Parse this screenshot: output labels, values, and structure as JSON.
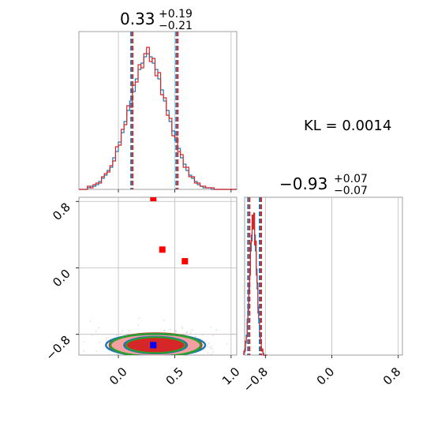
{
  "chart_data": {
    "type": "corner",
    "panels": [
      {
        "panel": "histogram-param1",
        "type": "histogram",
        "title_main": "0.33",
        "title_sup": "+0.19",
        "title_sub": "−0.21",
        "xlim": [
          -0.35,
          1.05
        ],
        "x_ticks": [
          0.0,
          0.5,
          1.0
        ],
        "quantile_lines": [
          0.12,
          0.33,
          0.52
        ],
        "bins": [
          -0.35,
          -0.325,
          -0.3,
          -0.275,
          -0.25,
          -0.225,
          -0.2,
          -0.175,
          -0.15,
          -0.125,
          -0.1,
          -0.075,
          -0.05,
          -0.025,
          0.0,
          0.025,
          0.05,
          0.075,
          0.1,
          0.125,
          0.15,
          0.175,
          0.2,
          0.225,
          0.25,
          0.275,
          0.3,
          0.325,
          0.35,
          0.375,
          0.4,
          0.425,
          0.45,
          0.475,
          0.5,
          0.525,
          0.55,
          0.575,
          0.6,
          0.625,
          0.65,
          0.675,
          0.7,
          0.725,
          0.75,
          0.775,
          0.8,
          0.825,
          0.85,
          0.875,
          0.9,
          0.925,
          0.95,
          0.975,
          1.0,
          1.025,
          1.05
        ],
        "series": [
          {
            "name": "blue",
            "color": "#1f77b4",
            "counts": [
              0,
              0,
              0,
              0.01,
              0.02,
              0.02,
              0.03,
              0.05,
              0.07,
              0.09,
              0.12,
              0.14,
              0.2,
              0.24,
              0.3,
              0.36,
              0.43,
              0.5,
              0.56,
              0.62,
              0.7,
              0.76,
              0.8,
              0.84,
              0.86,
              0.84,
              0.8,
              0.76,
              0.7,
              0.63,
              0.56,
              0.5,
              0.43,
              0.37,
              0.31,
              0.26,
              0.2,
              0.16,
              0.12,
              0.09,
              0.07,
              0.05,
              0.03,
              0.02,
              0.01,
              0.01,
              0.01,
              0.0,
              0.0,
              0.0,
              0.0,
              0.0,
              0.0,
              0.0,
              0.0,
              0.0
            ]
          },
          {
            "name": "red",
            "color": "#d62728",
            "counts": [
              0,
              0,
              0,
              0.02,
              0.01,
              0.03,
              0.04,
              0.04,
              0.08,
              0.1,
              0.11,
              0.15,
              0.18,
              0.27,
              0.28,
              0.38,
              0.41,
              0.53,
              0.52,
              0.66,
              0.68,
              0.79,
              0.77,
              0.86,
              0.9,
              0.81,
              0.83,
              0.72,
              0.74,
              0.6,
              0.58,
              0.47,
              0.45,
              0.34,
              0.33,
              0.24,
              0.22,
              0.14,
              0.14,
              0.08,
              0.08,
              0.04,
              0.04,
              0.02,
              0.02,
              0.01,
              0.01,
              0.01,
              0.0,
              0.0,
              0.0,
              0.0,
              0.0,
              0.0,
              0.0,
              0.0
            ]
          }
        ]
      },
      {
        "panel": "histogram-param2",
        "type": "histogram",
        "title_main": "−0.93",
        "title_sup": "+0.07",
        "title_sub": "−0.07",
        "xlim": [
          -1.05,
          0.85
        ],
        "x_ticks": [
          -0.8,
          0.0,
          0.8
        ],
        "quantile_lines": [
          -1.0,
          -0.93,
          -0.86
        ],
        "bins": [
          -1.06,
          -1.05,
          -1.04,
          -1.03,
          -1.02,
          -1.01,
          -1.0,
          -0.99,
          -0.98,
          -0.97,
          -0.96,
          -0.95,
          -0.94,
          -0.93,
          -0.92,
          -0.91,
          -0.9,
          -0.89,
          -0.88,
          -0.87,
          -0.86,
          -0.85,
          -0.84,
          -0.83,
          -0.82,
          -0.81,
          -0.8,
          -0.79,
          -0.78
        ],
        "series": [
          {
            "name": "blue",
            "color": "#1f77b4",
            "counts": [
              0.01,
              0.03,
              0.06,
              0.1,
              0.16,
              0.24,
              0.33,
              0.43,
              0.52,
              0.6,
              0.66,
              0.68,
              0.66,
              0.6,
              0.52,
              0.43,
              0.33,
              0.24,
              0.16,
              0.1,
              0.06,
              0.03,
              0.02,
              0.01,
              0.0,
              0.0,
              0.0,
              0.0
            ]
          },
          {
            "name": "red",
            "color": "#d62728",
            "counts": [
              0.02,
              0.02,
              0.07,
              0.09,
              0.18,
              0.22,
              0.36,
              0.4,
              0.56,
              0.57,
              0.7,
              0.63,
              0.71,
              0.55,
              0.57,
              0.4,
              0.36,
              0.21,
              0.18,
              0.09,
              0.07,
              0.02,
              0.03,
              0.0,
              0.0,
              0.0,
              0.0,
              0.0
            ]
          }
        ]
      },
      {
        "panel": "scatter-contour",
        "type": "scatter",
        "xlim": [
          -0.35,
          1.05
        ],
        "ylim": [
          -1.05,
          0.85
        ],
        "x_ticks": [
          0.0,
          0.5,
          1.0
        ],
        "y_ticks": [
          0.8,
          0.0,
          -0.8
        ],
        "red_markers": [
          [
            0.31,
            0.84
          ],
          [
            0.39,
            0.22
          ],
          [
            0.59,
            0.08
          ]
        ],
        "blue_marker": [
          0.31,
          -0.93
        ],
        "contour_center": [
          0.33,
          -0.93
        ],
        "contour_spread": [
          0.2,
          0.07
        ],
        "colors": {
          "red": "#d62728",
          "green": "#2ca02c",
          "blue": "#1f77b4",
          "pink": "#f4a0a0",
          "marker_red": "#ff0000",
          "marker_blue": "#0000ff"
        }
      }
    ],
    "annotation": "KL = 0.0014"
  }
}
